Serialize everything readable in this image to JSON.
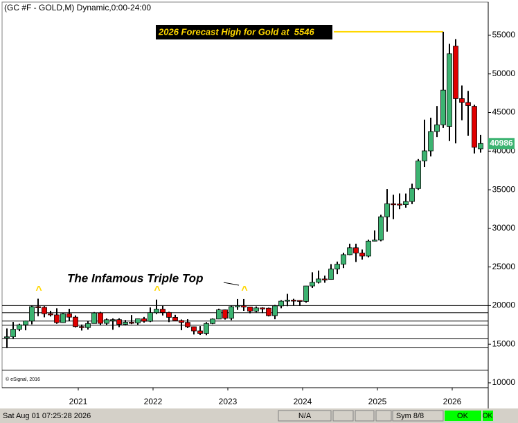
{
  "chart_data": {
    "type": "candlestick",
    "title": "(GC #F - GOLD,M) Dynamic,0:00-24:00",
    "annotation": "The Infamous Triple Top",
    "caret": "^",
    "forecast_label": "2026 Forecast High for Gold at  5546",
    "forecast_value": 55460,
    "copyright": "© eSignal, 2016",
    "categories": [
      null,
      null,
      null,
      null,
      null,
      null,
      null,
      null,
      null,
      null,
      "2021",
      null,
      null,
      null,
      null,
      null,
      null,
      null,
      null,
      null,
      null,
      null,
      "2022",
      null,
      null,
      null,
      null,
      null,
      null,
      null,
      null,
      null,
      null,
      null,
      "2023",
      null,
      null,
      null,
      null,
      null,
      null,
      null,
      null,
      null,
      null,
      null,
      "2024",
      null,
      null,
      null,
      null,
      null,
      null,
      null,
      null,
      null,
      null,
      null,
      "2025",
      null,
      null,
      null,
      null,
      null,
      null,
      null,
      null,
      null,
      null,
      null,
      "2026",
      null,
      null,
      null,
      null,
      null,
      null
    ],
    "open": [
      15900,
      15960,
      16940,
      17510,
      18000,
      19860,
      19780,
      18950,
      18790,
      17800,
      18950,
      18500,
      17280,
      17150,
      17680,
      19050,
      17700,
      18170,
      18180,
      17570,
      17840,
      17760,
      18290,
      17970,
      19080,
      19540,
      19110,
      18480,
      18070,
      17820,
      17260,
      16720,
      16400,
      17680,
      18260,
      19450,
      18360,
      19860,
      19990,
      19820,
      19290,
      19700,
      19660,
      18700,
      19960,
      20570,
      20710,
      20670,
      20540,
      22540,
      23020,
      23450,
      23390,
      24730,
      25360,
      26590,
      27490,
      26810,
      26410,
      28350,
      28480,
      31500,
      33190,
      33150,
      33070,
      33480,
      35160,
      38730,
      40030,
      42540,
      43410,
      43200,
      53600,
      46800,
      46300,
      45800,
      40300
    ],
    "high": [
      17040,
      17880,
      17650,
      18050,
      20000,
      20890,
      19930,
      19330,
      19650,
      19050,
      19590,
      18730,
      17550,
      17980,
      19160,
      19190,
      18340,
      18340,
      18360,
      18140,
      18770,
      18310,
      18530,
      19760,
      20780,
      19980,
      19200,
      18800,
      18200,
      18240,
      17290,
      17340,
      17860,
      18340,
      19600,
      19500,
      20010,
      20850,
      20850,
      19850,
      19890,
      19780,
      19740,
      20090,
      20700,
      21520,
      20880,
      20700,
      22560,
      24310,
      24540,
      23880,
      25370,
      25700,
      26850,
      28010,
      28010,
      27260,
      28530,
      29740,
      31770,
      35090,
      34350,
      34520,
      34510,
      35780,
      38970,
      44080,
      44330,
      45840,
      55460,
      53900,
      54500,
      48500,
      47800,
      46000,
      42100
    ],
    "low": [
      14500,
      15670,
      16700,
      16800,
      17570,
      18630,
      18480,
      18590,
      17640,
      17770,
      18020,
      17170,
      16770,
      16900,
      17670,
      17500,
      17500,
      16870,
      17210,
      17460,
      17600,
      17530,
      17800,
      17860,
      18900,
      18720,
      17860,
      18050,
      16810,
      17090,
      16260,
      16180,
      16160,
      17600,
      18240,
      18190,
      18110,
      19440,
      19320,
      19000,
      19130,
      19030,
      18600,
      18230,
      19650,
      19920,
      20030,
      19960,
      20380,
      22280,
      22860,
      22960,
      23350,
      24060,
      24860,
      26530,
      25650,
      25960,
      26250,
      28320,
      28330,
      29570,
      31200,
      32480,
      32680,
      33140,
      34980,
      37960,
      39320,
      41810,
      43000,
      41300,
      41000,
      44000,
      42000,
      39700,
      39800
    ],
    "close": [
      15960,
      16940,
      17510,
      18000,
      19860,
      19780,
      18950,
      18790,
      17800,
      18950,
      18500,
      17280,
      17150,
      17680,
      19050,
      17700,
      18170,
      18180,
      17570,
      17840,
      17760,
      18290,
      17970,
      19080,
      19540,
      19110,
      18480,
      18070,
      17820,
      17260,
      16720,
      16400,
      17680,
      18260,
      19450,
      18360,
      19860,
      19990,
      19820,
      19290,
      19700,
      19660,
      18700,
      19960,
      20570,
      20710,
      20670,
      20540,
      22540,
      23020,
      23450,
      23390,
      24730,
      25360,
      26590,
      27490,
      26810,
      26410,
      28350,
      28480,
      31500,
      33190,
      33150,
      33070,
      33480,
      35160,
      38730,
      40030,
      42540,
      43410,
      47900,
      52600,
      46800,
      46300,
      45900,
      40500,
      40986
    ],
    "up_color": "#3cb371",
    "down_color": "#e00000",
    "hlines": [
      20000,
      19070,
      18000,
      17460,
      15750,
      14590,
      11630
    ],
    "ylim": [
      9370,
      59300
    ],
    "yticks": [
      10000,
      15000,
      20000,
      25000,
      30000,
      35000,
      40000,
      45000,
      50000,
      55000
    ]
  },
  "status_bar": {
    "datetime": "Sat Aug 01 07:25:28 2026",
    "field1": "N/A",
    "symbols": "Sym 8/8",
    "status1": "OK",
    "status2": "OK"
  }
}
